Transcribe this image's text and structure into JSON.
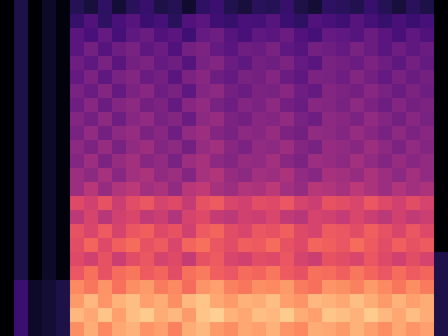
{
  "chart_data": {
    "type": "heatmap",
    "tick_labels": false,
    "zlim": [
      -80,
      0
    ],
    "cells": [
      [
        -80,
        -70,
        -80,
        -74,
        -78,
        -68,
        -71,
        -66,
        -72,
        -67,
        -65,
        -70,
        -68,
        -73,
        -66,
        -64,
        -69,
        -71,
        -67,
        -68,
        -65,
        -70,
        -72,
        -66,
        -67,
        -69,
        -65,
        -68,
        -71,
        -67,
        -70,
        -80
      ],
      [
        -80,
        -70,
        -80,
        -74,
        -78,
        -65,
        -60,
        -66,
        -61,
        -59,
        -64,
        -62,
        -67,
        -60,
        -58,
        -63,
        -65,
        -61,
        -62,
        -59,
        -64,
        -66,
        -60,
        -61,
        -63,
        -59,
        -62,
        -65,
        -61,
        -64,
        -62,
        -80
      ],
      [
        -80,
        -70,
        -80,
        -74,
        -78,
        -58,
        -61,
        -56,
        -62,
        -57,
        -55,
        -60,
        -58,
        -63,
        -56,
        -54,
        -59,
        -61,
        -57,
        -58,
        -55,
        -60,
        -62,
        -56,
        -57,
        -59,
        -55,
        -58,
        -61,
        -57,
        -60,
        -80
      ],
      [
        -80,
        -70,
        -80,
        -74,
        -78,
        -58,
        -53,
        -59,
        -54,
        -52,
        -57,
        -55,
        -60,
        -53,
        -51,
        -56,
        -58,
        -54,
        -55,
        -52,
        -57,
        -59,
        -53,
        -54,
        -56,
        -52,
        -55,
        -58,
        -54,
        -57,
        -55,
        -80
      ],
      [
        -80,
        -70,
        -80,
        -74,
        -78,
        -54,
        -57,
        -52,
        -58,
        -53,
        -51,
        -56,
        -54,
        -59,
        -52,
        -50,
        -55,
        -57,
        -53,
        -54,
        -51,
        -56,
        -58,
        -52,
        -53,
        -55,
        -51,
        -54,
        -57,
        -53,
        -56,
        -80
      ],
      [
        -80,
        -70,
        -80,
        -74,
        -78,
        -56,
        -51,
        -57,
        -52,
        -50,
        -55,
        -53,
        -58,
        -51,
        -49,
        -54,
        -56,
        -52,
        -53,
        -50,
        -55,
        -57,
        -51,
        -52,
        -54,
        -50,
        -53,
        -56,
        -52,
        -55,
        -53,
        -80
      ],
      [
        -80,
        -70,
        -80,
        -74,
        -78,
        -52,
        -55,
        -50,
        -56,
        -51,
        -49,
        -54,
        -52,
        -57,
        -50,
        -48,
        -53,
        -55,
        -51,
        -52,
        -49,
        -54,
        -56,
        -50,
        -51,
        -53,
        -49,
        -52,
        -55,
        -51,
        -54,
        -80
      ],
      [
        -80,
        -70,
        -80,
        -74,
        -78,
        -54,
        -49,
        -55,
        -50,
        -48,
        -53,
        -51,
        -56,
        -49,
        -47,
        -52,
        -54,
        -50,
        -51,
        -48,
        -53,
        -55,
        -49,
        -50,
        -52,
        -48,
        -51,
        -54,
        -50,
        -53,
        -51,
        -80
      ],
      [
        -80,
        -70,
        -80,
        -74,
        -78,
        -50,
        -53,
        -48,
        -54,
        -49,
        -47,
        -52,
        -50,
        -55,
        -48,
        -46,
        -51,
        -53,
        -49,
        -50,
        -47,
        -52,
        -54,
        -48,
        -49,
        -51,
        -47,
        -50,
        -53,
        -49,
        -52,
        -80
      ],
      [
        -80,
        -70,
        -80,
        -74,
        -78,
        -52,
        -47,
        -53,
        -48,
        -46,
        -51,
        -49,
        -54,
        -47,
        -45,
        -50,
        -52,
        -48,
        -49,
        -46,
        -51,
        -53,
        -47,
        -48,
        -50,
        -46,
        -49,
        -52,
        -48,
        -51,
        -49,
        -80
      ],
      [
        -80,
        -70,
        -80,
        -74,
        -78,
        -48,
        -51,
        -46,
        -52,
        -47,
        -45,
        -50,
        -48,
        -53,
        -46,
        -44,
        -49,
        -51,
        -47,
        -48,
        -45,
        -50,
        -52,
        -46,
        -47,
        -49,
        -45,
        -48,
        -51,
        -47,
        -50,
        -80
      ],
      [
        -80,
        -70,
        -80,
        -74,
        -78,
        -50,
        -45,
        -51,
        -46,
        -44,
        -49,
        -47,
        -52,
        -45,
        -43,
        -48,
        -50,
        -46,
        -47,
        -44,
        -49,
        -51,
        -45,
        -46,
        -48,
        -44,
        -47,
        -50,
        -46,
        -49,
        -47,
        -80
      ],
      [
        -80,
        -70,
        -80,
        -74,
        -78,
        -45,
        -48,
        -43,
        -49,
        -44,
        -42,
        -47,
        -45,
        -50,
        -43,
        -41,
        -46,
        -48,
        -44,
        -45,
        -42,
        -47,
        -49,
        -43,
        -44,
        -46,
        -42,
        -45,
        -48,
        -44,
        -47,
        -80
      ],
      [
        -80,
        -70,
        -80,
        -74,
        -78,
        -45,
        -40,
        -46,
        -41,
        -39,
        -44,
        -42,
        -47,
        -40,
        -38,
        -43,
        -45,
        -41,
        -42,
        -39,
        -44,
        -46,
        -40,
        -41,
        -43,
        -39,
        -42,
        -45,
        -41,
        -44,
        -42,
        -80
      ],
      [
        -80,
        -70,
        -80,
        -74,
        -78,
        -32,
        -35,
        -30,
        -36,
        -31,
        -29,
        -34,
        -32,
        -37,
        -30,
        -28,
        -33,
        -35,
        -31,
        -32,
        -29,
        -34,
        -36,
        -30,
        -31,
        -33,
        -29,
        -32,
        -35,
        -31,
        -34,
        -80
      ],
      [
        -80,
        -70,
        -80,
        -74,
        -78,
        -39,
        -34,
        -40,
        -35,
        -33,
        -38,
        -36,
        -41,
        -34,
        -32,
        -37,
        -39,
        -35,
        -36,
        -33,
        -38,
        -40,
        -34,
        -35,
        -37,
        -33,
        -36,
        -39,
        -35,
        -38,
        -36,
        -80
      ],
      [
        -80,
        -70,
        -80,
        -74,
        -78,
        -30,
        -33,
        -28,
        -34,
        -29,
        -27,
        -32,
        -30,
        -35,
        -28,
        -26,
        -31,
        -33,
        -29,
        -30,
        -27,
        -32,
        -34,
        -28,
        -29,
        -31,
        -27,
        -30,
        -33,
        -29,
        -32,
        -80
      ],
      [
        -80,
        -70,
        -80,
        -74,
        -78,
        -31,
        -26,
        -32,
        -27,
        -25,
        -30,
        -28,
        -33,
        -26,
        -24,
        -29,
        -31,
        -27,
        -28,
        -25,
        -30,
        -32,
        -26,
        -27,
        -29,
        -25,
        -28,
        -31,
        -27,
        -30,
        -28,
        -80
      ],
      [
        -80,
        -70,
        -80,
        -74,
        -78,
        -32,
        -35,
        -30,
        -36,
        -31,
        -29,
        -34,
        -32,
        -37,
        -30,
        -28,
        -33,
        -35,
        -31,
        -32,
        -29,
        -34,
        -36,
        -30,
        -31,
        -33,
        -29,
        -32,
        -35,
        -31,
        -34,
        -70
      ],
      [
        -80,
        -70,
        -80,
        -74,
        -78,
        -29,
        -24,
        -30,
        -25,
        -23,
        -28,
        -26,
        -31,
        -24,
        -22,
        -27,
        -29,
        -25,
        -26,
        -23,
        -28,
        -30,
        -24,
        -25,
        -27,
        -23,
        -26,
        -29,
        -25,
        -28,
        -26,
        -70
      ],
      [
        -80,
        -64,
        -74,
        -72,
        -70,
        -20,
        -23,
        -18,
        -24,
        -19,
        -17,
        -22,
        -20,
        -25,
        -18,
        -16,
        -21,
        -23,
        -19,
        -20,
        -17,
        -22,
        -24,
        -18,
        -19,
        -21,
        -17,
        -20,
        -23,
        -19,
        -22,
        -70
      ],
      [
        -80,
        -64,
        -74,
        -72,
        -70,
        -17,
        -12,
        -18,
        -13,
        -11,
        -16,
        -14,
        -19,
        -12,
        -10,
        -15,
        -17,
        -13,
        -14,
        -11,
        -16,
        -18,
        -12,
        -13,
        -15,
        -11,
        -14,
        -17,
        -13,
        -16,
        -14,
        -70
      ],
      [
        -80,
        -64,
        -74,
        -72,
        -70,
        -12,
        -15,
        -10,
        -16,
        -11,
        -9,
        -14,
        -12,
        -17,
        -10,
        -8,
        -13,
        -15,
        -11,
        -12,
        -9,
        -14,
        -16,
        -10,
        -11,
        -13,
        -9,
        -12,
        -15,
        -11,
        -14,
        -70
      ],
      [
        -80,
        -64,
        -74,
        -72,
        -70,
        -19,
        -14,
        -20,
        -15,
        -13,
        -18,
        -16,
        -21,
        -14,
        -12,
        -17,
        -19,
        -15,
        -16,
        -13,
        -18,
        -20,
        -14,
        -15,
        -17,
        -13,
        -16,
        -19,
        -15,
        -18,
        -16,
        -70
      ]
    ]
  }
}
